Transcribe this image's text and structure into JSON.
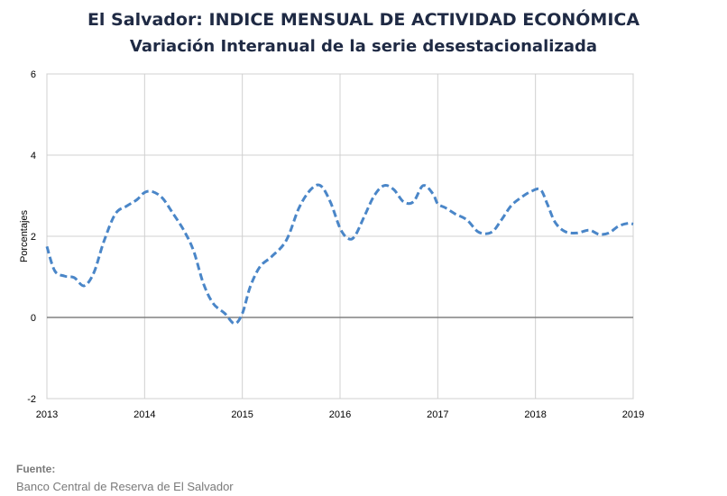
{
  "chart_data": {
    "type": "line",
    "title": "El Salvador: INDICE MENSUAL DE ACTIVIDAD ECONÓMICA",
    "subtitle": "Variación Interanual de la serie desestacionalizada",
    "xlabel": "",
    "ylabel": "Porcentajes",
    "ylim": [
      -2,
      6
    ],
    "yticks": [
      "-2",
      "0",
      "2",
      "4",
      "6"
    ],
    "xlim": [
      2013,
      2019
    ],
    "xticks": [
      "2013",
      "2014",
      "2015",
      "2016",
      "2017",
      "2018",
      "2019"
    ],
    "grid": true,
    "series_color": "#4a86c8",
    "zero_line_color": "#808080",
    "x": [
      2013.0,
      2013.08,
      2013.18,
      2013.28,
      2013.38,
      2013.48,
      2013.58,
      2013.7,
      2013.82,
      2013.92,
      2014.0,
      2014.08,
      2014.18,
      2014.28,
      2014.4,
      2014.5,
      2014.6,
      2014.7,
      2014.82,
      2014.92,
      2015.0,
      2015.08,
      2015.18,
      2015.3,
      2015.45,
      2015.58,
      2015.7,
      2015.8,
      2015.9,
      2016.0,
      2016.08,
      2016.15,
      2016.25,
      2016.35,
      2016.45,
      2016.55,
      2016.65,
      2016.75,
      2016.85,
      2016.95,
      2017.0,
      2017.08,
      2017.18,
      2017.3,
      2017.42,
      2017.55,
      2017.65,
      2017.75,
      2017.85,
      2017.95,
      2018.05,
      2018.12,
      2018.2,
      2018.3,
      2018.42,
      2018.55,
      2018.65,
      2018.75,
      2018.85,
      2018.95,
      2019.0
    ],
    "series": [
      {
        "values": [
          1.75,
          1.15,
          1.02,
          0.98,
          0.78,
          1.1,
          1.85,
          2.55,
          2.75,
          2.9,
          3.08,
          3.1,
          2.95,
          2.6,
          2.15,
          1.65,
          0.85,
          0.35,
          0.1,
          -0.15,
          0.1,
          0.75,
          1.25,
          1.5,
          1.9,
          2.7,
          3.15,
          3.25,
          2.85,
          2.2,
          1.95,
          2.0,
          2.5,
          3.0,
          3.25,
          3.15,
          2.85,
          2.85,
          3.25,
          3.05,
          2.8,
          2.7,
          2.55,
          2.4,
          2.1,
          2.1,
          2.4,
          2.75,
          2.95,
          3.1,
          3.15,
          2.8,
          2.35,
          2.12,
          2.08,
          2.15,
          2.05,
          2.08,
          2.25,
          2.32,
          2.3
        ]
      }
    ]
  },
  "footer": {
    "source_label": "Fuente:",
    "source_text": "Banco Central de Reserva de El Salvador"
  }
}
